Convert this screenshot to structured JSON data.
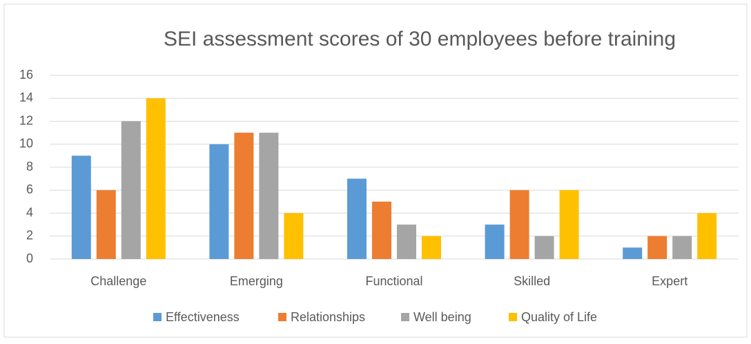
{
  "chart_data": {
    "type": "bar",
    "title": "SEI assessment scores of 30 employees before training",
    "categories": [
      "Challenge",
      "Emerging",
      "Functional",
      "Skilled",
      "Expert"
    ],
    "series": [
      {
        "name": "Effectiveness",
        "color": "#5b9bd5",
        "values": [
          9,
          10,
          7,
          3,
          1
        ]
      },
      {
        "name": "Relationships",
        "color": "#ed7d31",
        "values": [
          6,
          11,
          5,
          6,
          2
        ]
      },
      {
        "name": "Well being",
        "color": "#a5a5a5",
        "values": [
          12,
          11,
          3,
          2,
          2
        ]
      },
      {
        "name": "Quality of Life",
        "color": "#ffc000",
        "values": [
          14,
          4,
          2,
          6,
          4
        ]
      }
    ],
    "ylim": [
      0,
      16
    ],
    "yticks": [
      0,
      2,
      4,
      6,
      8,
      10,
      12,
      14,
      16
    ],
    "grid": true,
    "legend": "bottom"
  }
}
